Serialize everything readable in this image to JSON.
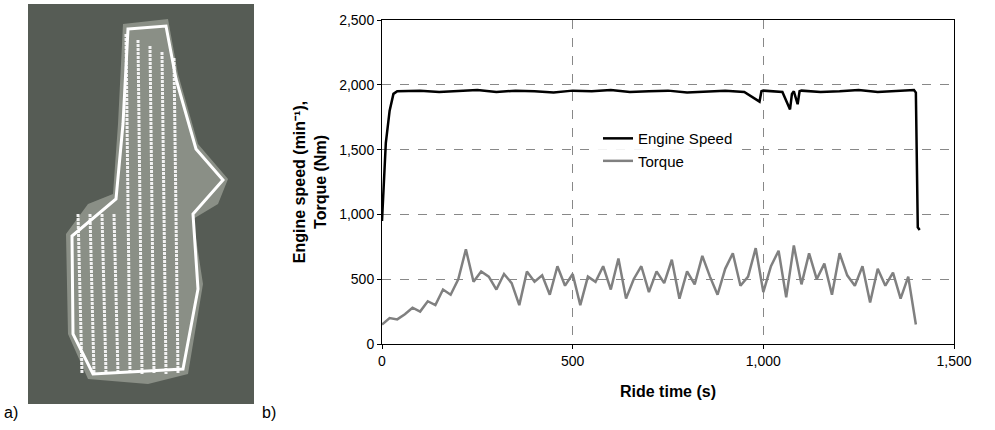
{
  "chart_data": [
    {
      "type": "map",
      "label": "a)"
    },
    {
      "type": "line",
      "label": "b)",
      "x_label": "Ride time (s)",
      "y_label": "Engine speed (min⁻¹), Torque (Nm)",
      "xlim": [
        0,
        1500
      ],
      "xticks": [
        0,
        500,
        {
          "value": 1000,
          "label": "1,000"
        },
        {
          "value": 1500,
          "label": "1,500"
        }
      ],
      "ylim": [
        0,
        2500
      ],
      "yticks": [
        0,
        500,
        {
          "value": 1000,
          "label": "1,000"
        },
        {
          "value": 1500,
          "label": "1,500"
        },
        {
          "value": 2000,
          "label": "2,000"
        },
        {
          "value": 2500,
          "label": "2,500"
        }
      ],
      "grid": true,
      "legend": "center",
      "series": [
        {
          "name": "Engine Speed",
          "color": "#000000",
          "x": [
            0,
            5,
            10,
            20,
            30,
            40,
            100,
            150,
            200,
            250,
            300,
            350,
            400,
            450,
            500,
            550,
            600,
            650,
            700,
            750,
            800,
            850,
            900,
            950,
            990,
            995,
            1000,
            1050,
            1070,
            1075,
            1080,
            1090,
            1095,
            1100,
            1150,
            1200,
            1250,
            1300,
            1350,
            1395,
            1400,
            1405,
            1410
          ],
          "values": [
            950,
            1250,
            1550,
            1800,
            1930,
            1950,
            1955,
            1945,
            1950,
            1960,
            1945,
            1955,
            1950,
            1940,
            1955,
            1950,
            1960,
            1945,
            1950,
            1955,
            1940,
            1950,
            1955,
            1945,
            1870,
            1950,
            1955,
            1945,
            1810,
            1930,
            1950,
            1850,
            1950,
            1955,
            1945,
            1950,
            1960,
            1945,
            1950,
            1960,
            1940,
            900,
            880
          ]
        },
        {
          "name": "Torque",
          "color": "#808080",
          "x": [
            0,
            20,
            40,
            60,
            80,
            100,
            120,
            140,
            160,
            180,
            200,
            220,
            240,
            260,
            280,
            300,
            320,
            340,
            360,
            380,
            400,
            420,
            440,
            460,
            480,
            500,
            520,
            540,
            560,
            580,
            600,
            620,
            640,
            660,
            680,
            700,
            720,
            740,
            760,
            780,
            800,
            820,
            840,
            860,
            880,
            900,
            920,
            940,
            960,
            980,
            1000,
            1020,
            1040,
            1060,
            1080,
            1100,
            1120,
            1140,
            1160,
            1180,
            1200,
            1220,
            1240,
            1260,
            1280,
            1300,
            1320,
            1340,
            1360,
            1380,
            1400
          ],
          "values": [
            150,
            200,
            190,
            230,
            280,
            250,
            330,
            300,
            420,
            380,
            500,
            730,
            480,
            560,
            520,
            420,
            540,
            470,
            300,
            560,
            480,
            530,
            380,
            600,
            450,
            540,
            300,
            520,
            480,
            600,
            420,
            660,
            350,
            500,
            600,
            400,
            560,
            470,
            650,
            350,
            560,
            460,
            680,
            520,
            380,
            580,
            700,
            450,
            520,
            740,
            400,
            600,
            720,
            360,
            760,
            460,
            700,
            500,
            620,
            380,
            700,
            530,
            450,
            600,
            320,
            580,
            450,
            550,
            350,
            520,
            150
          ]
        }
      ]
    }
  ]
}
